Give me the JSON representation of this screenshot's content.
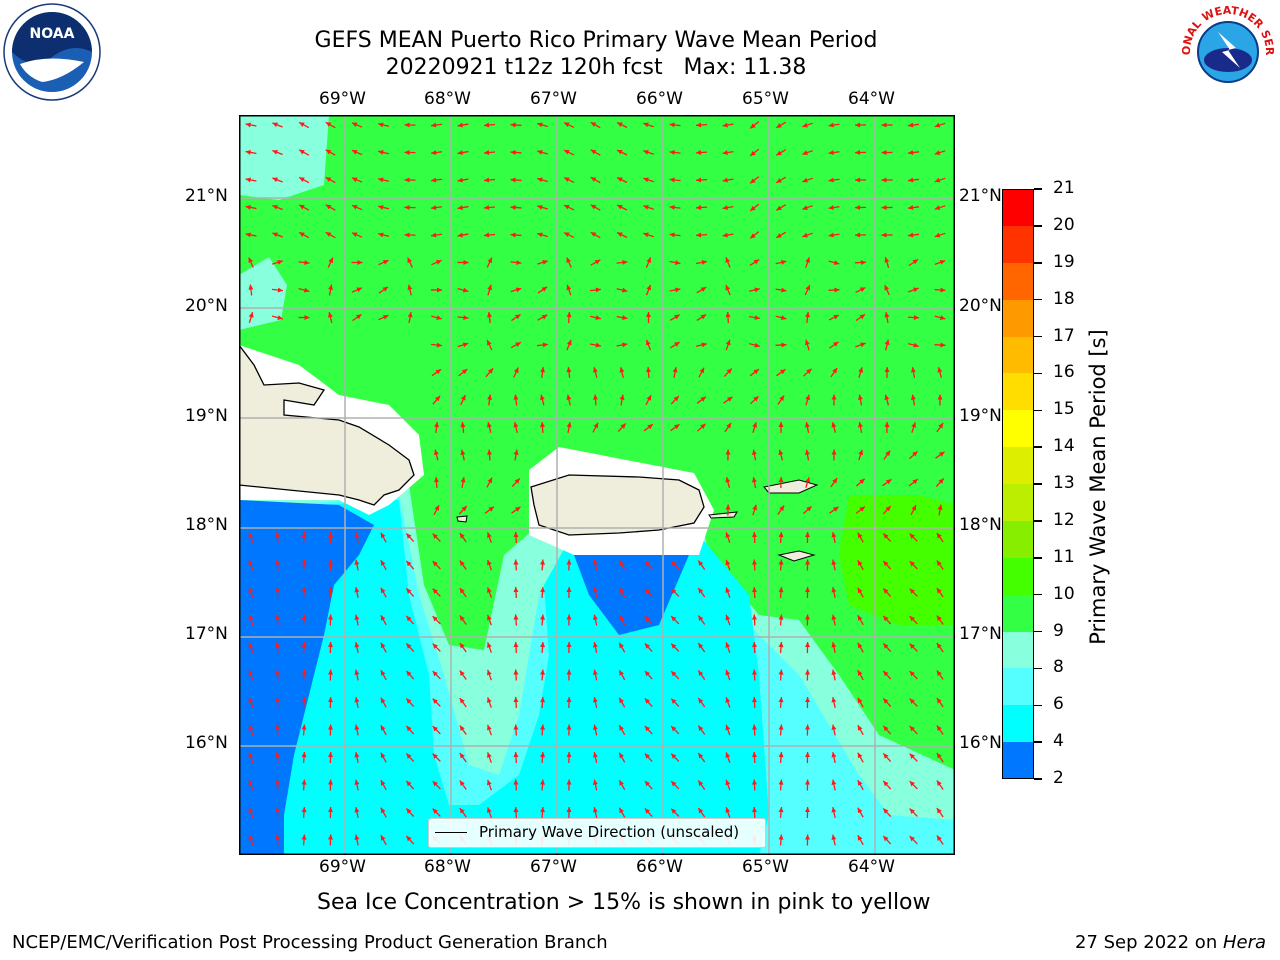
{
  "title": {
    "line1": "GEFS MEAN Puerto Rico Primary Wave Mean Period",
    "line2": "20220921 t12z 120h fcst   Max: 11.38"
  },
  "axes": {
    "lon_labels": [
      "69°W",
      "68°W",
      "67°W",
      "66°W",
      "65°W",
      "64°W"
    ],
    "lat_labels": [
      "21°N",
      "20°N",
      "19°N",
      "18°N",
      "17°N",
      "16°N"
    ]
  },
  "legend": {
    "label": "Primary Wave Direction (unscaled)"
  },
  "colorbar": {
    "label": "Primary Wave Mean Period [s]",
    "ticks": [
      "21",
      "20",
      "19",
      "18",
      "17",
      "16",
      "15",
      "14",
      "13",
      "12",
      "11",
      "10",
      "9",
      "8",
      "6",
      "4",
      "2"
    ],
    "colors": [
      "#ff0000",
      "#ff3300",
      "#ff6600",
      "#ff9900",
      "#ffbb00",
      "#ffdd00",
      "#ffff00",
      "#ddee00",
      "#bbee00",
      "#88ee00",
      "#44ff00",
      "#33ff44",
      "#88ffdd",
      "#55ffff",
      "#00ffff",
      "#0077ff",
      "#0000ff"
    ]
  },
  "caption": "Sea Ice Concentration > 15% is shown in pink to yellow",
  "footer": {
    "left": "NCEP/EMC/Verification Post Processing Product Generation Branch",
    "right_prefix": "27 Sep 2022 on ",
    "right_host": "Hera"
  },
  "logos": {
    "left_text": "NOAA",
    "right_text": "NATIONAL WEATHER SERVICE"
  }
}
